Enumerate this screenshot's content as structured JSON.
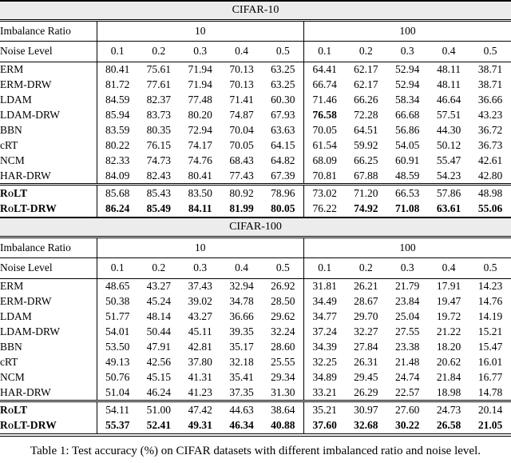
{
  "caption": "Table 1: Test accuracy (%) on CIFAR datasets with different imbalanced ratio and noise level.",
  "labels": {
    "imbalance_ratio": "Imbalance Ratio",
    "noise_level": "Noise Level"
  },
  "chart_data": [
    {
      "type": "table",
      "title": "CIFAR-10",
      "imbalance_ratios": [
        "10",
        "100"
      ],
      "noise_levels": [
        "0.1",
        "0.2",
        "0.3",
        "0.4",
        "0.5",
        "0.1",
        "0.2",
        "0.3",
        "0.4",
        "0.5"
      ],
      "groups": [
        {
          "rows": [
            {
              "method": "ERM",
              "values": [
                "80.41",
                "75.61",
                "71.94",
                "70.13",
                "63.25",
                "64.41",
                "62.17",
                "52.94",
                "48.11",
                "38.71"
              ],
              "bold": []
            },
            {
              "method": "ERM-DRW",
              "values": [
                "81.72",
                "77.61",
                "71.94",
                "70.13",
                "63.25",
                "66.74",
                "62.17",
                "52.94",
                "48.11",
                "38.71"
              ],
              "bold": []
            },
            {
              "method": "LDAM",
              "values": [
                "84.59",
                "82.37",
                "77.48",
                "71.41",
                "60.30",
                "71.46",
                "66.26",
                "58.34",
                "46.64",
                "36.66"
              ],
              "bold": []
            },
            {
              "method": "LDAM-DRW",
              "values": [
                "85.94",
                "83.73",
                "80.20",
                "74.87",
                "67.93",
                "76.58",
                "72.28",
                "66.68",
                "57.51",
                "43.23"
              ],
              "bold": [
                5
              ]
            },
            {
              "method": "BBN",
              "values": [
                "83.59",
                "80.35",
                "72.94",
                "70.04",
                "63.63",
                "70.05",
                "64.51",
                "56.86",
                "44.30",
                "36.72"
              ],
              "bold": []
            },
            {
              "method": "cRT",
              "values": [
                "80.22",
                "76.15",
                "74.17",
                "70.05",
                "64.15",
                "61.54",
                "59.92",
                "54.05",
                "50.12",
                "36.73"
              ],
              "bold": []
            },
            {
              "method": "NCM",
              "values": [
                "82.33",
                "74.73",
                "74.76",
                "68.43",
                "64.82",
                "68.09",
                "66.25",
                "60.91",
                "55.47",
                "42.61"
              ],
              "bold": []
            },
            {
              "method": "HAR-DRW",
              "values": [
                "84.09",
                "82.43",
                "80.41",
                "77.43",
                "67.39",
                "70.81",
                "67.88",
                "48.59",
                "54.23",
                "42.80"
              ],
              "bold": []
            }
          ]
        },
        {
          "rows": [
            {
              "method": "RoLT",
              "smallcaps": true,
              "values": [
                "85.68",
                "85.43",
                "83.50",
                "80.92",
                "78.96",
                "73.02",
                "71.20",
                "66.53",
                "57.86",
                "48.98"
              ],
              "bold": []
            },
            {
              "method": "RoLT-DRW",
              "smallcaps": true,
              "values": [
                "86.24",
                "85.49",
                "84.11",
                "81.99",
                "80.05",
                "76.22",
                "74.92",
                "71.08",
                "63.61",
                "55.06"
              ],
              "bold": [
                0,
                1,
                2,
                3,
                4,
                6,
                7,
                8,
                9
              ]
            }
          ]
        }
      ]
    },
    {
      "type": "table",
      "title": "CIFAR-100",
      "imbalance_ratios": [
        "10",
        "100"
      ],
      "noise_levels": [
        "0.1",
        "0.2",
        "0.3",
        "0.4",
        "0.5",
        "0.1",
        "0.2",
        "0.3",
        "0.4",
        "0.5"
      ],
      "groups": [
        {
          "rows": [
            {
              "method": "ERM",
              "values": [
                "48.65",
                "43.27",
                "37.43",
                "32.94",
                "26.92",
                "31.81",
                "26.21",
                "21.79",
                "17.91",
                "14.23"
              ],
              "bold": []
            },
            {
              "method": "ERM-DRW",
              "values": [
                "50.38",
                "45.24",
                "39.02",
                "34.78",
                "28.50",
                "34.49",
                "28.67",
                "23.84",
                "19.47",
                "14.76"
              ],
              "bold": []
            },
            {
              "method": "LDAM",
              "values": [
                "51.77",
                "48.14",
                "43.27",
                "36.66",
                "29.62",
                "34.77",
                "29.70",
                "25.04",
                "19.72",
                "14.19"
              ],
              "bold": []
            },
            {
              "method": "LDAM-DRW",
              "values": [
                "54.01",
                "50.44",
                "45.11",
                "39.35",
                "32.24",
                "37.24",
                "32.27",
                "27.55",
                "21.22",
                "15.21"
              ],
              "bold": []
            },
            {
              "method": "BBN",
              "values": [
                "53.50",
                "47.91",
                "42.81",
                "35.17",
                "28.60",
                "34.39",
                "27.84",
                "23.38",
                "18.20",
                "15.47"
              ],
              "bold": []
            },
            {
              "method": "cRT",
              "values": [
                "49.13",
                "42.56",
                "37.80",
                "32.18",
                "25.55",
                "32.25",
                "26.31",
                "21.48",
                "20.62",
                "16.01"
              ],
              "bold": []
            },
            {
              "method": "NCM",
              "values": [
                "50.76",
                "45.15",
                "41.31",
                "35.41",
                "29.34",
                "34.89",
                "29.45",
                "24.74",
                "21.84",
                "16.77"
              ],
              "bold": []
            },
            {
              "method": "HAR-DRW",
              "values": [
                "51.04",
                "46.24",
                "41.23",
                "37.35",
                "31.30",
                "33.21",
                "26.29",
                "22.57",
                "18.98",
                "14.78"
              ],
              "bold": []
            }
          ]
        },
        {
          "rows": [
            {
              "method": "RoLT",
              "smallcaps": true,
              "values": [
                "54.11",
                "51.00",
                "47.42",
                "44.63",
                "38.64",
                "35.21",
                "30.97",
                "27.60",
                "24.73",
                "20.14"
              ],
              "bold": []
            },
            {
              "method": "RoLT-DRW",
              "smallcaps": true,
              "values": [
                "55.37",
                "52.41",
                "49.31",
                "46.34",
                "40.88",
                "37.60",
                "32.68",
                "30.22",
                "26.58",
                "21.05"
              ],
              "bold": [
                0,
                1,
                2,
                3,
                4,
                5,
                6,
                7,
                8,
                9
              ]
            }
          ]
        }
      ]
    }
  ]
}
